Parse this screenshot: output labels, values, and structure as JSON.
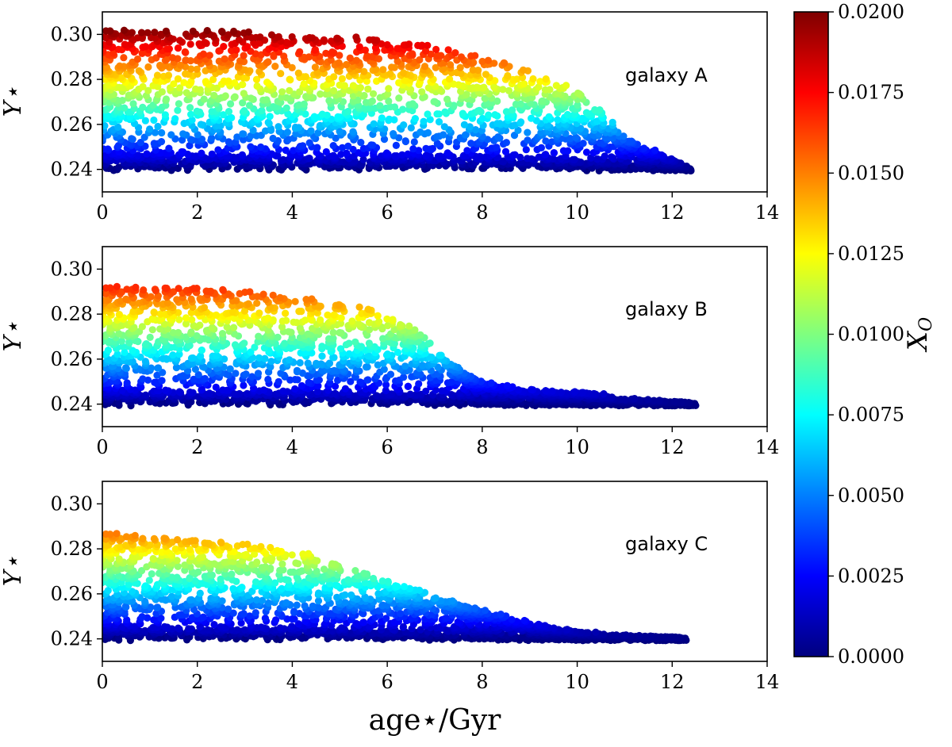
{
  "chart_data": [
    {
      "type": "scatter",
      "panel": "top",
      "annotation": "galaxy A",
      "ylabel": "Y⋆",
      "xlim": [
        0,
        14
      ],
      "ylim": [
        0.23,
        0.31
      ],
      "xticks": [
        "0",
        "2",
        "4",
        "6",
        "8",
        "10",
        "12",
        "14"
      ],
      "yticks": [
        "0.24",
        "0.26",
        "0.28",
        "0.30"
      ],
      "ytick_values": [
        0.24,
        0.26,
        0.28,
        0.3
      ],
      "max_age_gyr": 12.4,
      "envelope": [
        [
          0,
          0.302
        ],
        [
          2,
          0.302
        ],
        [
          4,
          0.3
        ],
        [
          6,
          0.298
        ],
        [
          8,
          0.291
        ],
        [
          9.5,
          0.28
        ],
        [
          10.2,
          0.272
        ],
        [
          11,
          0.255
        ],
        [
          12,
          0.244
        ],
        [
          12.4,
          0.24
        ]
      ],
      "color_encodes": "X_O"
    },
    {
      "type": "scatter",
      "panel": "middle",
      "annotation": "galaxy B",
      "ylabel": "Y⋆",
      "xlim": [
        0,
        14
      ],
      "ylim": [
        0.23,
        0.31
      ],
      "xticks": [
        "0",
        "2",
        "4",
        "6",
        "8",
        "10",
        "12",
        "14"
      ],
      "yticks": [
        "0.24",
        "0.26",
        "0.28",
        "0.30"
      ],
      "ytick_values": [
        0.24,
        0.26,
        0.28,
        0.3
      ],
      "max_age_gyr": 12.5,
      "envelope": [
        [
          0,
          0.292
        ],
        [
          2,
          0.292
        ],
        [
          4,
          0.288
        ],
        [
          5.5,
          0.283
        ],
        [
          6.5,
          0.275
        ],
        [
          7,
          0.265
        ],
        [
          7.5,
          0.256
        ],
        [
          8,
          0.25
        ],
        [
          9,
          0.246
        ],
        [
          10.3,
          0.245
        ],
        [
          11,
          0.242
        ],
        [
          12.5,
          0.24
        ]
      ],
      "color_encodes": "X_O"
    },
    {
      "type": "scatter",
      "panel": "bottom",
      "annotation": "galaxy C",
      "ylabel": "Y⋆",
      "xlabel": "age⋆/Gyr",
      "xlim": [
        0,
        14
      ],
      "ylim": [
        0.23,
        0.31
      ],
      "xticks": [
        "0",
        "2",
        "4",
        "6",
        "8",
        "10",
        "12",
        "14"
      ],
      "yticks": [
        "0.24",
        "0.26",
        "0.28",
        "0.30"
      ],
      "ytick_values": [
        0.24,
        0.26,
        0.28,
        0.3
      ],
      "max_age_gyr": 12.3,
      "envelope": [
        [
          0,
          0.287
        ],
        [
          2,
          0.284
        ],
        [
          3.5,
          0.281
        ],
        [
          4.5,
          0.277
        ],
        [
          5.2,
          0.271
        ],
        [
          6,
          0.266
        ],
        [
          7,
          0.259
        ],
        [
          8,
          0.253
        ],
        [
          9,
          0.247
        ],
        [
          10,
          0.243
        ],
        [
          11,
          0.241
        ],
        [
          12.3,
          0.24
        ]
      ],
      "color_encodes": "X_O"
    }
  ],
  "colorbar": {
    "label": "X_O",
    "label_text": "X",
    "label_sub": "O",
    "range": [
      0.0,
      0.02
    ],
    "ticks": [
      "0.0000",
      "0.0025",
      "0.0050",
      "0.0075",
      "0.0100",
      "0.0125",
      "0.0150",
      "0.0175",
      "0.0200"
    ],
    "tick_values": [
      0.0,
      0.0025,
      0.005,
      0.0075,
      0.01,
      0.0125,
      0.015,
      0.0175,
      0.02
    ],
    "colormap": "jet",
    "stops": [
      "#00007f",
      "#0000ff",
      "#007fff",
      "#00ffff",
      "#7fff7f",
      "#ffff00",
      "#ff7f00",
      "#ff0000",
      "#7f0000"
    ]
  }
}
